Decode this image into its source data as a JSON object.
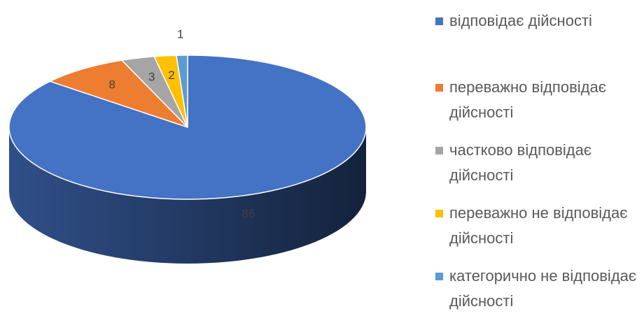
{
  "chart_data": {
    "type": "pie3d",
    "categories": [
      "відповідає дійсності",
      "переважно відповідає дійсності",
      "частково відповідає дійсності",
      "переважно не відповідає дійсності",
      "категорично не відповідає дійсності"
    ],
    "values": [
      86,
      8,
      3,
      2,
      1
    ],
    "colors": [
      "#4472c4",
      "#ed7d31",
      "#a5a5a5",
      "#ffc000",
      "#5b9bd5"
    ],
    "legend": "right"
  }
}
